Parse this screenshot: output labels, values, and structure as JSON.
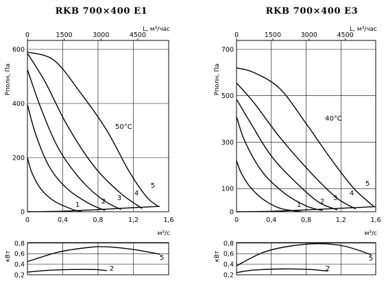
{
  "chart_data": [
    {
      "type": "line",
      "title": "RKB 700×400 E1",
      "ylabel": "Pполн, Па",
      "top_axis_label": "L, м³/час",
      "xlabel": "м³/с",
      "top_ticks": [
        0,
        1500,
        3000,
        4500
      ],
      "x_ticks": [
        "0",
        "0,4",
        "0,8",
        "1,2",
        "1,6"
      ],
      "y_ticks": [
        0,
        200,
        400,
        600
      ],
      "xlim": [
        0,
        1.6
      ],
      "ylim": [
        0,
        600
      ],
      "grid": true,
      "annotation": "50°C",
      "series": [
        {
          "name": "1",
          "x": [
            0,
            0.05,
            0.15,
            0.3,
            0.5,
            0.62
          ],
          "y": [
            200,
            145,
            85,
            40,
            10,
            0
          ]
        },
        {
          "name": "2",
          "x": [
            0,
            0.1,
            0.25,
            0.45,
            0.7,
            0.88
          ],
          "y": [
            395,
            280,
            165,
            85,
            30,
            5
          ]
        },
        {
          "name": "3",
          "x": [
            0,
            0.15,
            0.35,
            0.6,
            0.85,
            1.06
          ],
          "y": [
            525,
            385,
            235,
            120,
            45,
            8
          ]
        },
        {
          "name": "4",
          "x": [
            0,
            0.2,
            0.45,
            0.75,
            1.05,
            1.3
          ],
          "y": [
            585,
            480,
            320,
            170,
            70,
            12
          ]
        },
        {
          "name": "5",
          "x": [
            0,
            0.3,
            0.6,
            0.9,
            1.15,
            1.35,
            1.48
          ],
          "y": [
            590,
            560,
            440,
            300,
            150,
            55,
            20
          ]
        },
        {
          "name": "",
          "x": [
            0,
            0.4,
            0.8,
            1.2,
            1.5
          ],
          "y": [
            0,
            2,
            8,
            15,
            20
          ]
        }
      ],
      "power": {
        "ylabel": "кВт",
        "y_ticks": [
          "0,2",
          "0,4",
          "0,6",
          "0,8"
        ],
        "ylim": [
          0.2,
          0.85
        ],
        "series": [
          {
            "name": "5",
            "x": [
              0,
              0.35,
              0.7,
              0.9,
              1.2,
              1.5
            ],
            "y": [
              0.45,
              0.63,
              0.72,
              0.73,
              0.68,
              0.59
            ]
          },
          {
            "name": "2",
            "x": [
              0,
              0.2,
              0.5,
              0.75,
              0.9
            ],
            "y": [
              0.25,
              0.28,
              0.3,
              0.3,
              0.28
            ]
          }
        ]
      }
    },
    {
      "type": "line",
      "title": "RKB 700×400 E3",
      "ylabel": "Pполн, Па",
      "top_axis_label": "L, м³/час",
      "xlabel": "м³/с",
      "top_ticks": [
        0,
        1500,
        3000,
        4500
      ],
      "x_ticks": [
        "0",
        "0,4",
        "0,8",
        "1,2",
        "1,6"
      ],
      "y_ticks": [
        0,
        100,
        300,
        500,
        700
      ],
      "xlim": [
        0,
        1.6
      ],
      "ylim": [
        0,
        700
      ],
      "grid": true,
      "annotation": "40°C",
      "series": [
        {
          "name": "1",
          "x": [
            0,
            0.05,
            0.15,
            0.3,
            0.5,
            0.75
          ],
          "y": [
            220,
            170,
            110,
            55,
            15,
            0
          ]
        },
        {
          "name": "2",
          "x": [
            0,
            0.1,
            0.3,
            0.55,
            0.8,
            0.99
          ],
          "y": [
            410,
            300,
            170,
            80,
            25,
            5
          ]
        },
        {
          "name": "3",
          "x": [
            0,
            0.15,
            0.4,
            0.7,
            0.95,
            1.16
          ],
          "y": [
            485,
            390,
            240,
            120,
            40,
            8
          ]
        },
        {
          "name": "4",
          "x": [
            0,
            0.2,
            0.5,
            0.85,
            1.15,
            1.37
          ],
          "y": [
            555,
            470,
            320,
            170,
            60,
            12
          ]
        },
        {
          "name": "5",
          "x": [
            0,
            0.2,
            0.5,
            0.8,
            1.1,
            1.35,
            1.58
          ],
          "y": [
            620,
            600,
            530,
            380,
            220,
            100,
            22
          ]
        },
        {
          "name": "",
          "x": [
            0,
            0.4,
            0.8,
            1.2,
            1.6
          ],
          "y": [
            0,
            2,
            8,
            15,
            22
          ]
        }
      ],
      "power": {
        "ylabel": "кВт",
        "y_ticks": [
          "0,2",
          "0,4",
          "0,6",
          "0,8"
        ],
        "ylim": [
          0.2,
          0.85
        ],
        "series": [
          {
            "name": "5",
            "x": [
              0,
              0.3,
              0.6,
              0.95,
              1.25,
              1.55
            ],
            "y": [
              0.37,
              0.62,
              0.74,
              0.79,
              0.74,
              0.58
            ]
          },
          {
            "name": "2",
            "x": [
              0,
              0.2,
              0.55,
              0.85,
              1.05
            ],
            "y": [
              0.24,
              0.29,
              0.31,
              0.3,
              0.27
            ]
          }
        ]
      }
    }
  ]
}
